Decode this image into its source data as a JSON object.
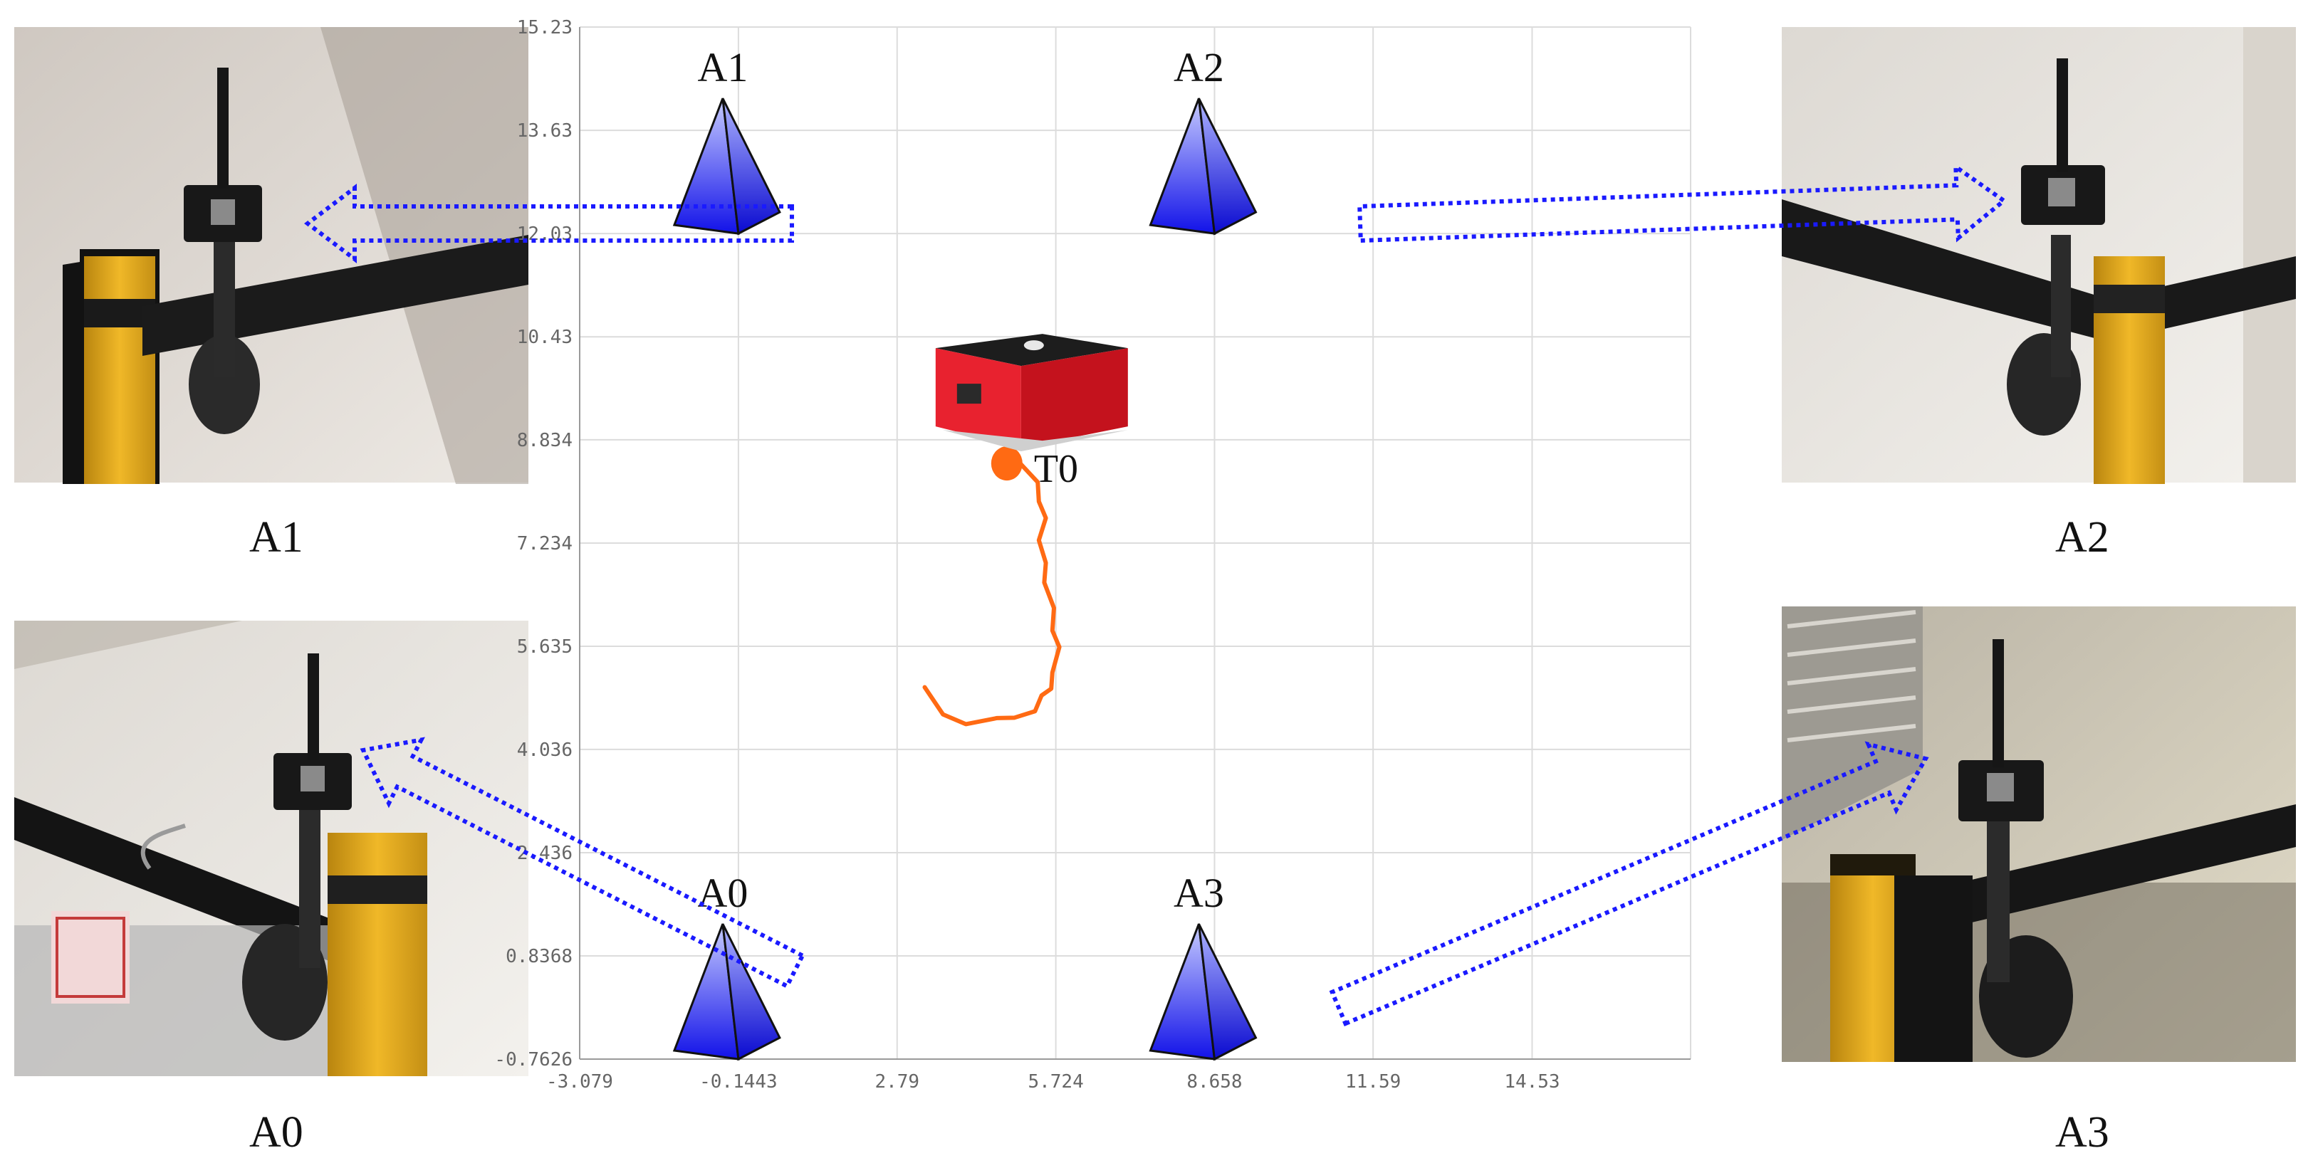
{
  "chart_data": {
    "type": "scatter",
    "x_ticks": [
      "-3.079",
      "-0.1443",
      "2.79",
      "5.724",
      "8.658",
      "11.59",
      "14.53"
    ],
    "y_ticks": [
      "15.23",
      "13.63",
      "12.03",
      "10.43",
      "8.834",
      "7.234",
      "5.635",
      "4.036",
      "2.436",
      "0.8368",
      "-0.7626"
    ],
    "xlim": [
      -3.079,
      17.46
    ],
    "ylim": [
      -0.7626,
      15.23
    ],
    "grid": true,
    "anchors": [
      {
        "label": "A1",
        "x": -0.1443,
        "y": 12.03
      },
      {
        "label": "A2",
        "x": 8.658,
        "y": 12.03
      },
      {
        "label": "A0",
        "x": -0.1443,
        "y": -0.7626
      },
      {
        "label": "A3",
        "x": 8.658,
        "y": -0.7626
      }
    ],
    "tag_label": "T0",
    "trajectory": [
      [
        3.3,
        5.0
      ],
      [
        3.6,
        4.6
      ],
      [
        4.1,
        4.45
      ],
      [
        4.6,
        4.5
      ],
      [
        5.0,
        4.55
      ],
      [
        5.3,
        4.65
      ],
      [
        5.5,
        4.85
      ],
      [
        5.6,
        5.0
      ],
      [
        5.7,
        5.25
      ],
      [
        5.75,
        5.6
      ],
      [
        5.7,
        5.9
      ],
      [
        5.65,
        6.25
      ],
      [
        5.55,
        6.6
      ],
      [
        5.5,
        6.95
      ],
      [
        5.45,
        7.3
      ],
      [
        5.5,
        7.6
      ],
      [
        5.45,
        7.9
      ],
      [
        5.35,
        8.2
      ],
      [
        5.1,
        8.45
      ],
      [
        4.95,
        8.6
      ]
    ]
  },
  "diagram": {
    "photos": [
      {
        "label": "A1"
      },
      {
        "label": "A2"
      },
      {
        "label": "A0"
      },
      {
        "label": "A3"
      }
    ]
  },
  "colors": {
    "arrow": "#1a1aff",
    "trajectory": "#ff6a13",
    "robot_red": "#e8222f",
    "pyramid_top": "#c7ccff",
    "pyramid_bottom": "#1212e8"
  }
}
